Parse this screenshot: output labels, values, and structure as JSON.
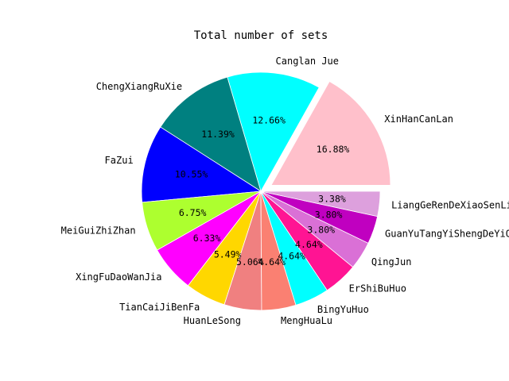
{
  "chart_data": {
    "type": "pie",
    "title": "Total number of sets",
    "slices": [
      {
        "label": "XinHanCanLan",
        "value": 16.88,
        "pct_label": "16.88%",
        "color": "#ffc0cb",
        "explode": true
      },
      {
        "label": "Canglan Jue",
        "value": 12.66,
        "pct_label": "12.66%",
        "color": "#00ffff",
        "explode": false
      },
      {
        "label": "ChengXiangRuXie",
        "value": 11.39,
        "pct_label": "11.39%",
        "color": "#008080",
        "explode": false
      },
      {
        "label": "FaZui",
        "value": 10.55,
        "pct_label": "10.55%",
        "color": "#0000ff",
        "explode": false
      },
      {
        "label": "MeiGuiZhiZhan",
        "value": 6.75,
        "pct_label": "6.75%",
        "color": "#adff2f",
        "explode": false
      },
      {
        "label": "XingFuDaoWanJia",
        "value": 6.33,
        "pct_label": "6.33%",
        "color": "#ff00ff",
        "explode": false
      },
      {
        "label": "TianCaiJiBenFa",
        "value": 5.49,
        "pct_label": "5.49%",
        "color": "#ffd700",
        "explode": false
      },
      {
        "label": "HuanLeSong",
        "value": 5.06,
        "pct_label": "5.06%",
        "color": "#f08080",
        "explode": false
      },
      {
        "label": "MengHuaLu",
        "value": 4.64,
        "pct_label": "4.64%",
        "color": "#fa8072",
        "explode": false
      },
      {
        "label": "BingYuHuo",
        "value": 4.64,
        "pct_label": "4.64%",
        "color": "#00ffff",
        "explode": false
      },
      {
        "label": "ErShiBuHuo",
        "value": 4.64,
        "pct_label": "4.64%",
        "color": "#ff1493",
        "explode": false
      },
      {
        "label": "QingJun",
        "value": 3.8,
        "pct_label": "3.80%",
        "color": "#da70d6",
        "explode": false
      },
      {
        "label": "GuanYuTangYiShengDeYiQie",
        "value": 3.8,
        "pct_label": "3.80%",
        "color": "#c000c0",
        "explode": false
      },
      {
        "label": "LiangGeRenDeXiaoSenLin",
        "value": 3.38,
        "pct_label": "3.38%",
        "color": "#dda0dd",
        "explode": false
      }
    ],
    "start_angle_deg": 0,
    "direction": "counterclockwise"
  }
}
